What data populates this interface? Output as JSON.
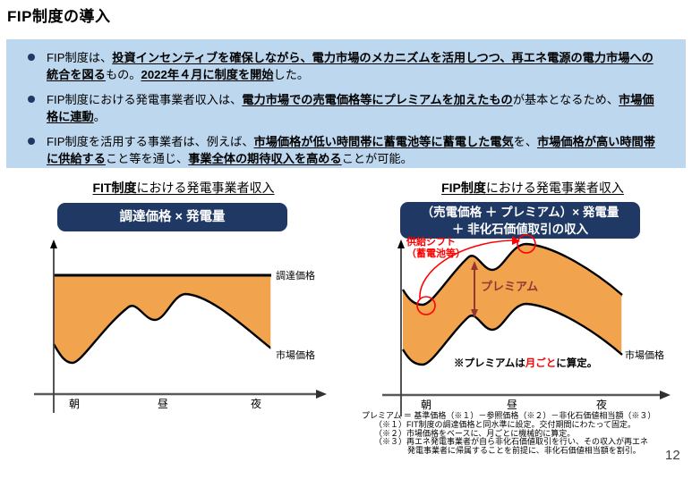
{
  "page": {
    "title": "FIP制度の導入",
    "page_number": "12"
  },
  "colors": {
    "accent_navy": "#1F3864",
    "intro_light_blue": "#BDD7EE",
    "band_orange": "#F2A34E",
    "annotation_red": "#FF0000",
    "premium_maroon": "#963634",
    "axis_gray": "#595959"
  },
  "intro": {
    "bullets": [
      {
        "runs": [
          {
            "t": "FIP制度は、"
          },
          {
            "t": "投資インセンティブを確保しながら、電力市場のメカニズムを活用しつつ、再エネ電源の電力市場への統合を図る",
            "b": true,
            "u": true
          },
          {
            "t": "もの。"
          },
          {
            "t": "2022年４月に制度を開始",
            "b": true,
            "u": true
          },
          {
            "t": "した。"
          }
        ]
      },
      {
        "runs": [
          {
            "t": "FIP制度における発電事業者収入は、"
          },
          {
            "t": "電力市場での売電価格等にプレミアムを加えたもの",
            "b": true,
            "u": true
          },
          {
            "t": "が基本となるため、"
          },
          {
            "t": "市場価格に連動",
            "b": true,
            "u": true
          },
          {
            "t": "。"
          }
        ]
      },
      {
        "runs": [
          {
            "t": "FIP制度を活用する事業者は、例えば、"
          },
          {
            "t": "市場価格が低い時間帯に蓄電池等に蓄電した電気",
            "b": true,
            "u": true
          },
          {
            "t": "を、"
          },
          {
            "t": "市場価格が高い時間帯に供給する",
            "b": true,
            "u": true
          },
          {
            "t": "こと等を通じ、"
          },
          {
            "t": "事業全体の期待収入を高める",
            "b": true,
            "u": true
          },
          {
            "t": "ことが可能。"
          }
        ]
      }
    ]
  },
  "fit_chart": {
    "heading_runs": [
      {
        "t": "FIT制度",
        "b": true
      },
      {
        "t": "における発電事業者収入"
      }
    ],
    "formula": "調達価格 × 発電量",
    "procurement_price_label": "調達価格",
    "market_price_label": "市場価格",
    "x_ticks": [
      "朝",
      "昼",
      "夜"
    ]
  },
  "fip_chart": {
    "heading_runs": [
      {
        "t": "FIP制度",
        "b": true
      },
      {
        "t": "における発電事業者収入"
      }
    ],
    "formula_line1": "（売電価格 ＋ プレミアム）× 発電量",
    "formula_line2": "＋ 非化石価値取引の収入",
    "supply_shift_line1": "供給シフト",
    "supply_shift_line2": "（蓄電池等）",
    "premium_label": "プレミアム",
    "note_runs": [
      {
        "t": "※プレミアムは",
        "b": true
      },
      {
        "t": "月ごと",
        "b": true,
        "c": "#FF0000"
      },
      {
        "t": "に算定。",
        "b": true
      }
    ],
    "market_price_label": "市場価格",
    "x_ticks": [
      "朝",
      "昼",
      "夜"
    ]
  },
  "footnotes": {
    "line1": "プレミアム ＝ 基準価格（※１）－参照価格（※２）－非化石価値相当額（※３）",
    "line2": "（※１）FIT制度の調達価格と同水準に設定。交付期間にわたって固定。",
    "line3": "（※２）市場価格をベースに、月ごとに機械的に算定。",
    "line4": "（※３）再エネ発電事業者が自ら非化石価値取引を行い、その収入が再エネ",
    "line5": "発電事業者に帰属することを前提に、非化石価値相当額を割引。"
  }
}
